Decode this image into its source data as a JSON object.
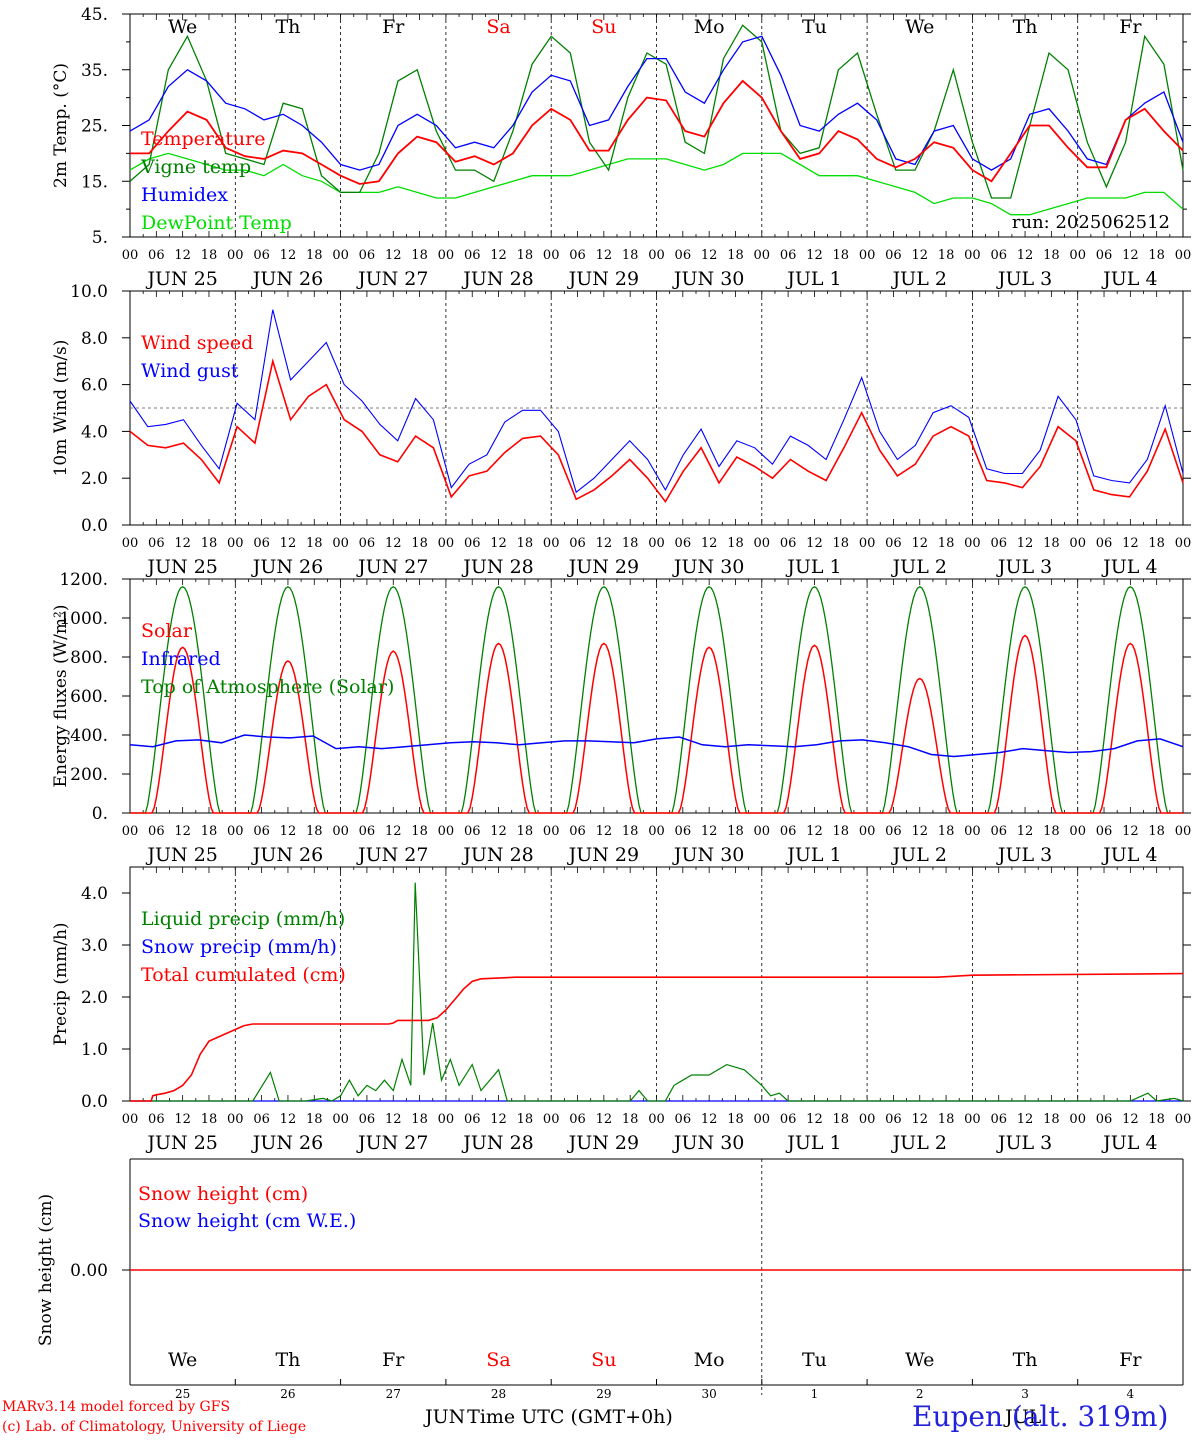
{
  "footer": {
    "credit_line1": "MARv3.14 model forced by GFS",
    "credit_line2": "(c) Lab. of Climatology, University of Liege",
    "station": "Eupen (alt. 319m)",
    "xaxis_title": "Time UTC (GMT+0h)",
    "month_left": "JUN",
    "month_right": "JUL"
  },
  "colors": {
    "red": "#ff0000",
    "blue": "#0000ff",
    "green": "#008000",
    "lightgreen": "#00dd00",
    "grid": "#888888"
  },
  "chart_data": [
    {
      "type": "line",
      "ylabel": "2m Temp. (°C)",
      "ylim": [
        5,
        45
      ],
      "yticks": [
        "45.",
        "35.",
        "25.",
        "15.",
        "5."
      ],
      "run_label": "run: 2025062512",
      "days": [
        "We",
        "Th",
        "Fr",
        "Sa",
        "Su",
        "Mo",
        "Tu",
        "We",
        "Th",
        "Fr"
      ],
      "day_colors": [
        "#000000",
        "#000000",
        "#000000",
        "#ff0000",
        "#ff0000",
        "#000000",
        "#000000",
        "#000000",
        "#000000",
        "#000000"
      ],
      "date_labels": [
        "JUN 25",
        "JUN 26",
        "JUN 27",
        "JUN 28",
        "JUN 29",
        "JUN 30",
        "JUL  1",
        "JUL  2",
        "JUL  3",
        "JUL  4"
      ],
      "hour_labels": [
        "00",
        "06",
        "12",
        "18"
      ],
      "legend": [
        {
          "name": "Temperature",
          "color": "#ff0000"
        },
        {
          "name": "Vigne temp",
          "color": "#008000"
        },
        {
          "name": "Humidex",
          "color": "#0000ff"
        },
        {
          "name": "DewPoint Temp",
          "color": "#00dd00"
        }
      ],
      "series": [
        {
          "name": "Temperature",
          "color": "#ff0000",
          "values": [
            20,
            20,
            24,
            27.5,
            26,
            21,
            19.5,
            19,
            20.5,
            20,
            18,
            16,
            14.5,
            15,
            20,
            23,
            22,
            18.5,
            19.5,
            18,
            20,
            25,
            28,
            26,
            20.5,
            20.5,
            26,
            30,
            29.5,
            24,
            23,
            29,
            33,
            30,
            24,
            19,
            20,
            24,
            22.5,
            19,
            17.5,
            19,
            22,
            21,
            17,
            15,
            20,
            25,
            25,
            21,
            17.5,
            17.5,
            26,
            28,
            24,
            20.5
          ]
        },
        {
          "name": "Vigne temp",
          "color": "#008000",
          "values": [
            15,
            18,
            35,
            41,
            33,
            20,
            19,
            18,
            29,
            28,
            16,
            13,
            13,
            20,
            33,
            35,
            24,
            17,
            17,
            15,
            24,
            36,
            41,
            38,
            22,
            17,
            30,
            38,
            36,
            22,
            20,
            37,
            43,
            40,
            24,
            20,
            21,
            35,
            38,
            27,
            17,
            17,
            24,
            35,
            22,
            12,
            12,
            25,
            38,
            35,
            22,
            14,
            22,
            41,
            36,
            17
          ]
        },
        {
          "name": "Humidex",
          "color": "#0000ff",
          "values": [
            24,
            26,
            32,
            35,
            33,
            29,
            28,
            26,
            27,
            25,
            22,
            18,
            17,
            18,
            25,
            27,
            25,
            21,
            22,
            21,
            25,
            31,
            34,
            33,
            25,
            26,
            32,
            37,
            37,
            31,
            29,
            35,
            40,
            41,
            34,
            25,
            24,
            27,
            29,
            26,
            19,
            18,
            24,
            25,
            19,
            17,
            19,
            27,
            28,
            24,
            19,
            18,
            26,
            29,
            31,
            22
          ]
        },
        {
          "name": "DewPoint Temp",
          "color": "#00dd00",
          "values": [
            17,
            19,
            20,
            19,
            18,
            17,
            17,
            16,
            18,
            16,
            15,
            13,
            13,
            13,
            14,
            13,
            12,
            12,
            13,
            14,
            15,
            16,
            16,
            16,
            17,
            18,
            19,
            19,
            19,
            18,
            17,
            18,
            20,
            20,
            20,
            18,
            16,
            16,
            16,
            15,
            14,
            13,
            11,
            12,
            12,
            11,
            9,
            9,
            10,
            11,
            12,
            12,
            12,
            13,
            13,
            10
          ]
        }
      ]
    },
    {
      "type": "line",
      "ylabel": "10m Wind (m/s)",
      "ylim": [
        0,
        10
      ],
      "yticks": [
        "10.0",
        "8.0",
        "6.0",
        "4.0",
        "2.0",
        "0.0"
      ],
      "reference_line": 5.0,
      "date_labels": [
        "JUN 25",
        "JUN 26",
        "JUN 27",
        "JUN 28",
        "JUN 29",
        "JUN 30",
        "JUL  1",
        "JUL  2",
        "JUL  3",
        "JUL  4"
      ],
      "hour_labels": [
        "00",
        "06",
        "12",
        "18"
      ],
      "legend": [
        {
          "name": "Wind speed",
          "color": "#ff0000"
        },
        {
          "name": "Wind gust",
          "color": "#0000ff"
        }
      ],
      "series": [
        {
          "name": "Wind speed",
          "color": "#ff0000",
          "values": [
            4,
            3.4,
            3.3,
            3.5,
            2.8,
            1.8,
            4.2,
            3.5,
            7,
            4.5,
            5.5,
            6,
            4.5,
            4,
            3,
            2.7,
            3.8,
            3.3,
            1.2,
            2.1,
            2.3,
            3.1,
            3.7,
            3.8,
            3,
            1.1,
            1.5,
            2.1,
            2.8,
            2,
            1,
            2.3,
            3.3,
            1.8,
            2.9,
            2.5,
            2,
            2.8,
            2.3,
            1.9,
            3.3,
            4.8,
            3.2,
            2.1,
            2.6,
            3.8,
            4.2,
            3.8,
            1.9,
            1.8,
            1.6,
            2.5,
            4.2,
            3.6,
            1.5,
            1.3,
            1.2,
            2.3,
            4.1,
            1.8
          ]
        },
        {
          "name": "Wind gust",
          "color": "#0000ff",
          "values": [
            5.3,
            4.2,
            4.3,
            4.5,
            3.4,
            2.4,
            5.2,
            4.5,
            9.2,
            6.2,
            7,
            7.8,
            6,
            5.3,
            4.3,
            3.6,
            5.4,
            4.5,
            1.6,
            2.6,
            3,
            4.4,
            4.9,
            4.9,
            4,
            1.4,
            2,
            2.8,
            3.6,
            2.8,
            1.5,
            3,
            4.1,
            2.5,
            3.6,
            3.3,
            2.6,
            3.8,
            3.4,
            2.8,
            4.5,
            6.3,
            4,
            2.8,
            3.4,
            4.8,
            5.1,
            4.6,
            2.4,
            2.2,
            2.2,
            3.2,
            5.5,
            4.5,
            2.1,
            1.9,
            1.8,
            2.8,
            5.1,
            2.2
          ]
        }
      ]
    },
    {
      "type": "line",
      "ylabel": "Energy fluxes (W/m²)",
      "ylim": [
        0,
        1200
      ],
      "yticks": [
        "1200.",
        "1000.",
        "800.",
        "600.",
        "400.",
        "200.",
        "0."
      ],
      "date_labels": [
        "JUN 25",
        "JUN 26",
        "JUN 27",
        "JUN 28",
        "JUN 29",
        "JUN 30",
        "JUL  1",
        "JUL  2",
        "JUL  3",
        "JUL  4"
      ],
      "hour_labels": [
        "00",
        "06",
        "12",
        "18"
      ],
      "legend": [
        {
          "name": "Solar",
          "color": "#ff0000"
        },
        {
          "name": "Infrared",
          "color": "#0000ff"
        },
        {
          "name": "Top of Atmosphere (Solar)",
          "color": "#008000"
        }
      ],
      "toa_peak": 1160,
      "solar_peaks": [
        850,
        780,
        830,
        870,
        870,
        850,
        860,
        690,
        910,
        870
      ],
      "infrared": [
        350,
        340,
        370,
        375,
        360,
        400,
        390,
        385,
        395,
        330,
        340,
        330,
        340,
        350,
        360,
        365,
        360,
        350,
        360,
        370,
        370,
        365,
        360,
        380,
        390,
        350,
        340,
        350,
        345,
        340,
        350,
        370,
        375,
        360,
        340,
        300,
        290,
        300,
        310,
        330,
        320,
        310,
        315,
        330,
        370,
        380,
        340
      ]
    },
    {
      "type": "line",
      "ylabel": "Precip (mm/h)",
      "ylim": [
        0,
        4.5
      ],
      "yticks": [
        "4.0",
        "3.0",
        "2.0",
        "1.0",
        "0.0"
      ],
      "date_labels": [
        "JUN 25",
        "JUN 26",
        "JUN 27",
        "JUN 28",
        "JUN 29",
        "JUN 30",
        "JUL  1",
        "JUL  2",
        "JUL  3",
        "JUL  4"
      ],
      "hour_labels": [
        "00",
        "06",
        "12",
        "18"
      ],
      "legend": [
        {
          "name": "Liquid precip (mm/h)",
          "color": "#008000"
        },
        {
          "name": "Snow precip (mm/h)",
          "color": "#0000ff"
        },
        {
          "name": "Total cumulated (cm)",
          "color": "#ff0000"
        }
      ],
      "series": [
        {
          "name": "Total cumulated (cm)",
          "color": "#ff0000",
          "points": [
            [
              0,
              0
            ],
            [
              2.4,
              0
            ],
            [
              2.6,
              0.1
            ],
            [
              3,
              0.12
            ],
            [
              4,
              0.15
            ],
            [
              5,
              0.2
            ],
            [
              6,
              0.3
            ],
            [
              7,
              0.5
            ],
            [
              8,
              0.9
            ],
            [
              9,
              1.15
            ],
            [
              11,
              1.3
            ],
            [
              13,
              1.45
            ],
            [
              14,
              1.48
            ],
            [
              16,
              1.48
            ],
            [
              20,
              1.48
            ],
            [
              22,
              1.48
            ],
            [
              24,
              1.48
            ],
            [
              29.5,
              1.48
            ],
            [
              30,
              1.5
            ],
            [
              30.5,
              1.55
            ],
            [
              34,
              1.55
            ],
            [
              35,
              1.6
            ],
            [
              36,
              1.75
            ],
            [
              37,
              1.95
            ],
            [
              38,
              2.15
            ],
            [
              39,
              2.3
            ],
            [
              40,
              2.35
            ],
            [
              44,
              2.38
            ],
            [
              72,
              2.38
            ],
            [
              92,
              2.38
            ],
            [
              94,
              2.4
            ],
            [
              96,
              2.42
            ],
            [
              120,
              2.45
            ]
          ]
        },
        {
          "name": "Liquid precip (mm/h)",
          "color": "#008000",
          "points": [
            [
              0,
              0
            ],
            [
              14,
              0
            ],
            [
              16,
              0.55
            ],
            [
              17,
              0
            ],
            [
              20,
              0
            ],
            [
              22,
              0.05
            ],
            [
              23,
              0
            ],
            [
              24,
              0.1
            ],
            [
              25,
              0.4
            ],
            [
              26,
              0.1
            ],
            [
              27,
              0.3
            ],
            [
              28,
              0.2
            ],
            [
              29,
              0.4
            ],
            [
              30,
              0.2
            ],
            [
              31,
              0.8
            ],
            [
              32,
              0.3
            ],
            [
              32.5,
              4.2
            ],
            [
              33.5,
              0.5
            ],
            [
              34.5,
              1.5
            ],
            [
              35.5,
              0.4
            ],
            [
              36.5,
              0.8
            ],
            [
              37.5,
              0.3
            ],
            [
              39,
              0.7
            ],
            [
              40,
              0.2
            ],
            [
              42,
              0.6
            ],
            [
              43,
              0
            ],
            [
              57,
              0
            ],
            [
              58,
              0.2
            ],
            [
              59,
              0
            ],
            [
              61,
              0
            ],
            [
              62,
              0.3
            ],
            [
              63,
              0.4
            ],
            [
              64,
              0.5
            ],
            [
              66,
              0.5
            ],
            [
              68,
              0.7
            ],
            [
              70,
              0.6
            ],
            [
              72,
              0.3
            ],
            [
              73,
              0.1
            ],
            [
              74,
              0.15
            ],
            [
              75,
              0
            ],
            [
              114,
              0
            ],
            [
              116,
              0.15
            ],
            [
              117,
              0
            ],
            [
              119,
              0.05
            ],
            [
              120,
              0
            ]
          ]
        },
        {
          "name": "Snow precip (mm/h)",
          "color": "#0000ff",
          "points": [
            [
              0,
              0
            ],
            [
              120,
              0
            ]
          ]
        }
      ]
    },
    {
      "type": "line",
      "ylabel": "Snow height (cm)",
      "yticks": [
        "0.00"
      ],
      "legend": [
        {
          "name": "Snow height (cm)",
          "color": "#ff0000"
        },
        {
          "name": "Snow height (cm W.E.)",
          "color": "#0000ff"
        }
      ],
      "days": [
        "We",
        "Th",
        "Fr",
        "Sa",
        "Su",
        "Mo",
        "Tu",
        "We",
        "Th",
        "Fr"
      ],
      "day_colors": [
        "#000000",
        "#000000",
        "#000000",
        "#ff0000",
        "#ff0000",
        "#000000",
        "#000000",
        "#000000",
        "#000000",
        "#000000"
      ],
      "date_numbers": [
        "25",
        "26",
        "27",
        "28",
        "29",
        "30",
        "1",
        "2",
        "3",
        "4"
      ],
      "series": [
        {
          "name": "Snow height (cm)",
          "color": "#ff0000",
          "values": [
            0,
            0
          ]
        }
      ]
    }
  ]
}
